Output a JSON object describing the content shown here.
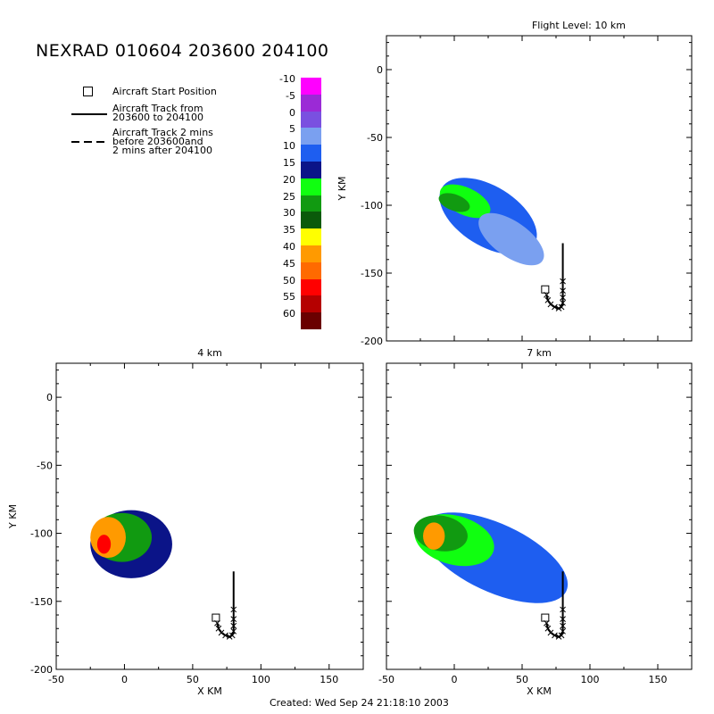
{
  "title": "NEXRAD 010604 203600 204100",
  "footer": "Created: Wed Sep 24 21:18:10 2003",
  "legend": {
    "start_marker": "Aircraft Start Position",
    "solid_track": [
      "Aircraft Track from",
      "203600 to 204100"
    ],
    "dashed_track": [
      "Aircraft Track 2 mins",
      "before 203600and",
      "2 mins after 204100"
    ]
  },
  "colorbar": {
    "labels": [
      "-10",
      "-5",
      "0",
      "5",
      "10",
      "15",
      "20",
      "25",
      "30",
      "35",
      "40",
      "45",
      "50",
      "55",
      "60"
    ],
    "colors": [
      "#ff00ff",
      "#9b2ad6",
      "#7a50e0",
      "#7aa0f0",
      "#1e5ef0",
      "#0b1488",
      "#10ff10",
      "#119a11",
      "#0a5a0a",
      "#ffff00",
      "#ff9a00",
      "#ff6a00",
      "#ff0000",
      "#b50000",
      "#6a0000"
    ]
  },
  "chart_data": [
    {
      "type": "heatmap",
      "title": "Flight Level: 10 km",
      "xlabel": "",
      "ylabel": "Y KM",
      "xlim": [
        -50,
        175
      ],
      "ylim": [
        -200,
        25
      ],
      "xticks": [],
      "yticks": [
        "-200",
        "-150",
        "-100",
        "-50",
        "0"
      ],
      "aircraft_start": [
        67,
        -162
      ],
      "track_x": [
        80,
        80,
        80,
        80,
        80,
        80,
        80,
        80,
        79,
        77,
        74,
        71,
        69,
        68
      ],
      "track_y": [
        -128,
        -135,
        -142,
        -149,
        -156,
        -163,
        -168,
        -172,
        -175,
        -176,
        -175,
        -173,
        -170,
        -166
      ],
      "echoes": [
        {
          "dbz": 10,
          "cx": 25,
          "cy": -108,
          "rx": 40,
          "ry": 22,
          "angle": 32
        },
        {
          "dbz": 20,
          "cx": 8,
          "cy": -97,
          "rx": 20,
          "ry": 10,
          "angle": 25
        },
        {
          "dbz": 25,
          "cx": 0,
          "cy": -98,
          "rx": 12,
          "ry": 6,
          "angle": 20
        },
        {
          "dbz": 5,
          "cx": 42,
          "cy": -125,
          "rx": 28,
          "ry": 13,
          "angle": 35
        }
      ]
    },
    {
      "type": "heatmap",
      "title": "4 km",
      "xlabel": "X KM",
      "ylabel": "Y KM",
      "xlim": [
        -50,
        175
      ],
      "ylim": [
        -200,
        25
      ],
      "xticks": [
        "-50",
        "0",
        "50",
        "100",
        "150"
      ],
      "yticks": [
        "-200",
        "-150",
        "-100",
        "-50",
        "0"
      ],
      "aircraft_start": [
        67,
        -162
      ],
      "track_x": [
        80,
        80,
        80,
        80,
        80,
        80,
        80,
        80,
        79,
        77,
        74,
        71,
        69,
        68
      ],
      "track_y": [
        -128,
        -135,
        -142,
        -149,
        -156,
        -163,
        -168,
        -172,
        -175,
        -176,
        -175,
        -173,
        -170,
        -166
      ],
      "echoes": [
        {
          "dbz": 15,
          "cx": 5,
          "cy": -108,
          "rx": 30,
          "ry": 25,
          "angle": 0
        },
        {
          "dbz": 25,
          "cx": -2,
          "cy": -103,
          "rx": 22,
          "ry": 18,
          "angle": 0
        },
        {
          "dbz": 40,
          "cx": -12,
          "cy": -103,
          "rx": 13,
          "ry": 15,
          "angle": 0
        },
        {
          "dbz": 50,
          "cx": -15,
          "cy": -108,
          "rx": 5,
          "ry": 7,
          "angle": 0
        }
      ]
    },
    {
      "type": "heatmap",
      "title": "7 km",
      "xlabel": "X KM",
      "ylabel": "",
      "xlim": [
        -50,
        175
      ],
      "ylim": [
        -200,
        25
      ],
      "xticks": [
        "-50",
        "0",
        "50",
        "100",
        "150"
      ],
      "yticks": [],
      "aircraft_start": [
        67,
        -162
      ],
      "track_x": [
        80,
        80,
        80,
        80,
        80,
        80,
        80,
        80,
        79,
        77,
        74,
        71,
        69,
        68
      ],
      "track_y": [
        -128,
        -135,
        -142,
        -149,
        -156,
        -163,
        -168,
        -172,
        -175,
        -176,
        -175,
        -173,
        -170,
        -166
      ],
      "echoes": [
        {
          "dbz": 10,
          "cx": 30,
          "cy": -118,
          "rx": 58,
          "ry": 25,
          "angle": 25
        },
        {
          "dbz": 20,
          "cx": 0,
          "cy": -105,
          "rx": 30,
          "ry": 18,
          "angle": 15
        },
        {
          "dbz": 25,
          "cx": -10,
          "cy": -100,
          "rx": 20,
          "ry": 13,
          "angle": 10
        },
        {
          "dbz": 40,
          "cx": -15,
          "cy": -102,
          "rx": 8,
          "ry": 10,
          "angle": 0
        }
      ]
    }
  ]
}
